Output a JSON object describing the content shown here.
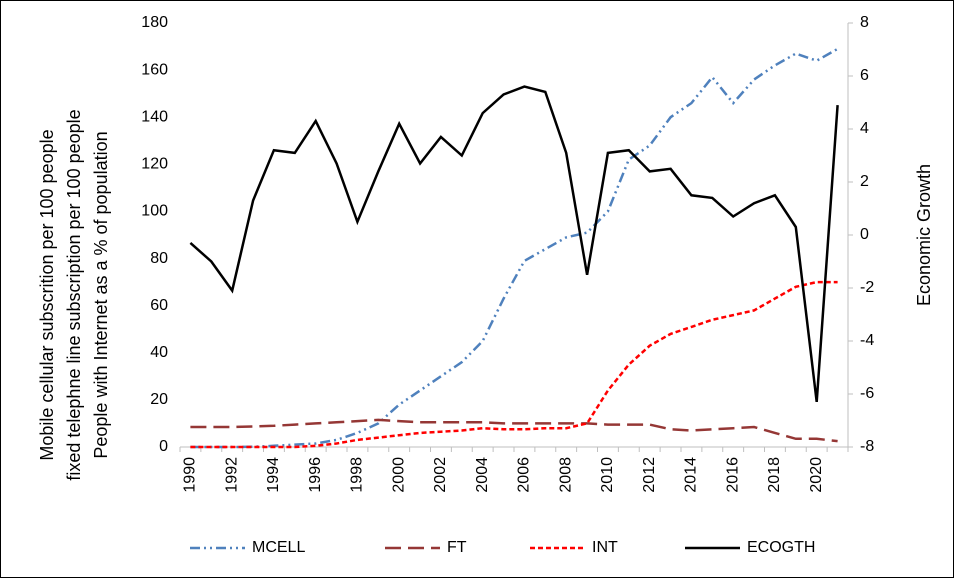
{
  "chart_data": {
    "type": "line",
    "y_label": [
      "Mobile cellular subscrition per 100 people",
      "fixed telephne line subscription per 100 people",
      "People with Internet as a % of population"
    ],
    "y2_label": "Economic Growth",
    "categories": [
      "1990",
      null,
      "1992",
      null,
      "1994",
      null,
      "1996",
      null,
      "1998",
      null,
      "2000",
      null,
      "2002",
      null,
      "2004",
      null,
      "2006",
      null,
      "2008",
      null,
      "2010",
      null,
      "2012",
      null,
      "2014",
      null,
      "2016",
      null,
      "2018",
      null,
      "2020",
      null
    ],
    "ylim": [
      0,
      180
    ],
    "yticks": [
      0,
      20,
      40,
      60,
      80,
      100,
      120,
      140,
      160,
      180
    ],
    "y2lim": [
      -8,
      8
    ],
    "y2ticks": [
      -8,
      -6,
      -4,
      -2,
      0,
      2,
      4,
      6,
      8
    ],
    "legend": "bottom",
    "series": [
      {
        "name": "MCELL",
        "color": "#4f81bd",
        "dash": "dash-dot-dot",
        "values": [
          0,
          0,
          0,
          0.1,
          0.5,
          1,
          1.5,
          3,
          6,
          10,
          18,
          24,
          30,
          36,
          45,
          63,
          79,
          84,
          89,
          91,
          100,
          122,
          128,
          140,
          146,
          157,
          146,
          156,
          162,
          167,
          164,
          169
        ]
      },
      {
        "name": "FT",
        "color": "#953735",
        "dash": "long-dash",
        "values": [
          8.5,
          8.5,
          8.5,
          8.7,
          9,
          9.5,
          10,
          10.5,
          11,
          11.5,
          11,
          10.5,
          10.5,
          10.5,
          10.5,
          10,
          10,
          10,
          10,
          10,
          9.5,
          9.5,
          9.5,
          7.5,
          7,
          7.5,
          8,
          8.5,
          6,
          3.5,
          3.5,
          2.5
        ]
      },
      {
        "name": "INT",
        "color": "#ff0000",
        "dash": "short-dash",
        "values": [
          0,
          0,
          0,
          0,
          0,
          0,
          0.5,
          1.5,
          3,
          4,
          5,
          6,
          6.5,
          7,
          8,
          7.5,
          7.5,
          8,
          8,
          10,
          24,
          35,
          43,
          48,
          51,
          54,
          56,
          58,
          63,
          68,
          70,
          70
        ]
      },
      {
        "name": "ECOGTH",
        "color": "#000000",
        "dash": "solid",
        "axis": "y2",
        "values": [
          -0.3,
          -1.0,
          -2.1,
          1.3,
          3.2,
          3.1,
          4.3,
          2.7,
          0.5,
          2.4,
          4.2,
          2.7,
          3.7,
          3.0,
          4.6,
          5.3,
          5.6,
          5.4,
          3.1,
          -1.5,
          3.1,
          3.2,
          2.4,
          2.5,
          1.5,
          1.4,
          0.7,
          1.2,
          1.5,
          0.3,
          -6.3,
          4.9
        ]
      }
    ]
  }
}
